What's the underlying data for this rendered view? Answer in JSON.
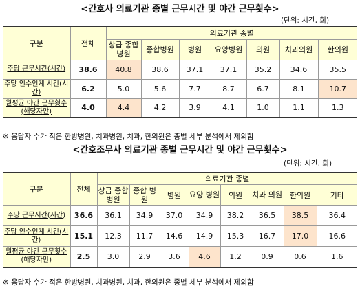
{
  "section1": {
    "title": "<간호사 의료기관 종별 근무시간 및 야간 근무횟수>",
    "unit": "(단위: 시간, 회)",
    "header": {
      "group": "구분",
      "total": "전체",
      "category": "의료기관 종별"
    },
    "columns": [
      "상급 종합병원",
      "종합병원",
      "병원",
      "요양병원",
      "의원",
      "치과의원",
      "한의원"
    ],
    "rows": [
      {
        "label": "주당 근무시간(시간)",
        "total": "38.6",
        "values": [
          "40.8",
          "38.6",
          "37.1",
          "37.1",
          "35.2",
          "34.6",
          "35.5"
        ]
      },
      {
        "label": "주당 인수인계 시간(시간)",
        "total": "6.2",
        "values": [
          "5.0",
          "5.6",
          "7.7",
          "8.7",
          "6.7",
          "8.1",
          "10.7"
        ]
      },
      {
        "label": "월평균 야간 근무횟수(해당자만)",
        "total": "4.0",
        "values": [
          "4.4",
          "4.2",
          "3.9",
          "4.1",
          "1.0",
          "1.1",
          "1.3"
        ]
      }
    ],
    "note": "※ 응답자 수가 적은 한방병원, 치과병원, 치과, 한의원은 종별 세부 분석에서 제외함"
  },
  "section2": {
    "title": "<간호조무사 의료기관 종별 근무시간 및 야간 근무횟수>",
    "unit": "(단위: 시간, 회)",
    "header": {
      "group": "구분",
      "total": "전체",
      "category": "의료기관 종별"
    },
    "columns": [
      "상급 종합병원",
      "종합 병원",
      "병원",
      "요양 병원",
      "의원",
      "치과 의원",
      "한의원",
      "기타"
    ],
    "rows": [
      {
        "label": "주당 근무시간(시간)",
        "total": "36.6",
        "values": [
          "36.1",
          "34.9",
          "37.0",
          "34.9",
          "38.2",
          "36.5",
          "38.5",
          "36.4"
        ]
      },
      {
        "label": "주당 인수인계 시간(시간)",
        "total": "15.1",
        "values": [
          "12.3",
          "11.7",
          "14.6",
          "14.9",
          "15.3",
          "16.7",
          "17.0",
          "16.6"
        ]
      },
      {
        "label": "월평균 야간 근무횟수(해당자만)",
        "total": "2.5",
        "values": [
          "3.0",
          "2.9",
          "3.6",
          "4.6",
          "1.2",
          "0.9",
          "0.6",
          "1.6"
        ]
      }
    ],
    "note": "※ 응답자 수가 적은 한방병원, 치과병원, 치과, 한의원은 종별 세부 분석에서 제외함"
  },
  "highlight_color": "#fde4cc",
  "header_color": "#ffffd6"
}
